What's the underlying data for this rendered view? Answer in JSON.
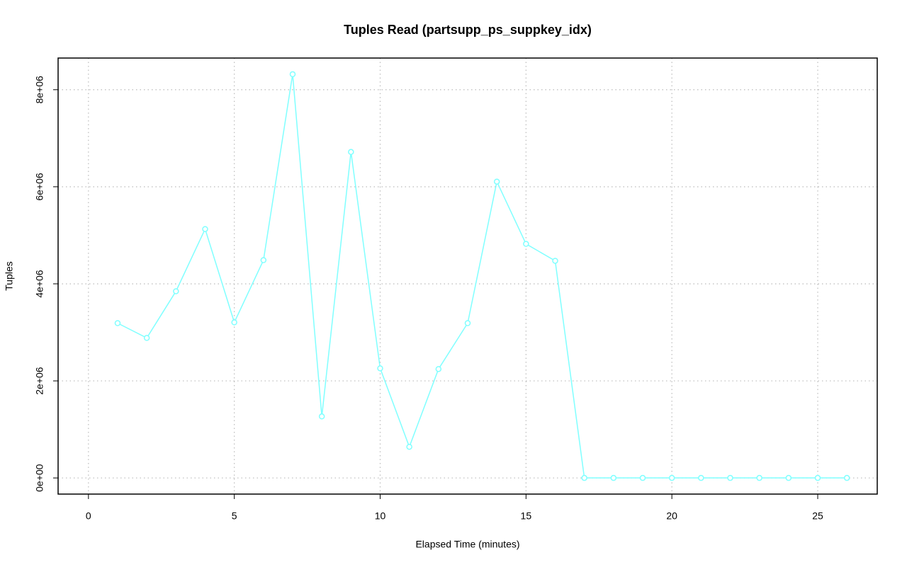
{
  "chart_data": {
    "type": "line",
    "title": "Tuples Read (partsupp_ps_suppkey_idx)",
    "x_label": "Elapsed Time (minutes)",
    "y_label": "Tuples",
    "x": [
      1,
      2,
      3,
      4,
      5,
      6,
      7,
      8,
      9,
      10,
      11,
      12,
      13,
      14,
      15,
      16,
      17,
      18,
      19,
      20,
      21,
      22,
      23,
      24,
      25,
      26
    ],
    "series": [
      {
        "name": "Tuples",
        "color": "#80ffff",
        "values": [
          3190000,
          2885000,
          3847000,
          5129000,
          3206000,
          4488000,
          8320000,
          1268000,
          6718000,
          2259000,
          641000,
          2244000,
          3190000,
          6106000,
          4823000,
          4474000,
          0,
          0,
          0,
          0,
          0,
          0,
          0,
          0,
          0,
          0
        ]
      }
    ],
    "xlim": [
      -1.04,
      27.04
    ],
    "ylim": [
      -332800,
      8652800
    ],
    "xticks": [
      0,
      5,
      10,
      15,
      20,
      25
    ],
    "yticks": [
      {
        "value": 0,
        "label": "0e+00"
      },
      {
        "value": 2000000,
        "label": "2e+06"
      },
      {
        "value": 4000000,
        "label": "4e+06"
      },
      {
        "value": 6000000,
        "label": "6e+06"
      },
      {
        "value": 8000000,
        "label": "8e+06"
      }
    ],
    "grid": true
  }
}
